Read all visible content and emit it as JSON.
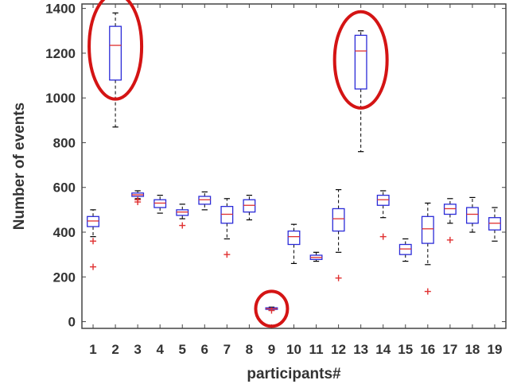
{
  "chart_data": {
    "type": "box",
    "xlabel": "participants#",
    "ylabel": "Number of events",
    "ylim": [
      -30,
      1420
    ],
    "yticks": [
      0,
      200,
      400,
      600,
      800,
      1000,
      1200,
      1400
    ],
    "categories": [
      "1",
      "2",
      "3",
      "4",
      "5",
      "6",
      "7",
      "8",
      "9",
      "10",
      "11",
      "12",
      "13",
      "14",
      "15",
      "16",
      "17",
      "18",
      "19"
    ],
    "boxes": [
      {
        "participant": "1",
        "whisker_low": 380,
        "q1": 425,
        "median": 450,
        "q3": 470,
        "whisker_high": 500,
        "outliers": [
          360,
          245
        ]
      },
      {
        "participant": "2",
        "whisker_low": 870,
        "q1": 1080,
        "median": 1235,
        "q3": 1320,
        "whisker_high": 1380,
        "outliers": []
      },
      {
        "participant": "3",
        "whisker_low": 550,
        "q1": 560,
        "median": 567,
        "q3": 575,
        "whisker_high": 585,
        "outliers": [
          535,
          545
        ]
      },
      {
        "participant": "4",
        "whisker_low": 485,
        "q1": 510,
        "median": 530,
        "q3": 545,
        "whisker_high": 565,
        "outliers": []
      },
      {
        "participant": "5",
        "whisker_low": 460,
        "q1": 475,
        "median": 490,
        "q3": 500,
        "whisker_high": 525,
        "outliers": [
          430
        ]
      },
      {
        "participant": "6",
        "whisker_low": 500,
        "q1": 525,
        "median": 545,
        "q3": 560,
        "whisker_high": 580,
        "outliers": []
      },
      {
        "participant": "7",
        "whisker_low": 370,
        "q1": 440,
        "median": 480,
        "q3": 515,
        "whisker_high": 550,
        "outliers": [
          300
        ]
      },
      {
        "participant": "8",
        "whisker_low": 455,
        "q1": 490,
        "median": 520,
        "q3": 545,
        "whisker_high": 565,
        "outliers": []
      },
      {
        "participant": "9",
        "whisker_low": 50,
        "q1": 55,
        "median": 58,
        "q3": 62,
        "whisker_high": 65,
        "outliers": [
          50
        ]
      },
      {
        "participant": "10",
        "whisker_low": 260,
        "q1": 345,
        "median": 380,
        "q3": 405,
        "whisker_high": 435,
        "outliers": []
      },
      {
        "participant": "11",
        "whisker_low": 270,
        "q1": 278,
        "median": 287,
        "q3": 297,
        "whisker_high": 310,
        "outliers": []
      },
      {
        "participant": "12",
        "whisker_low": 310,
        "q1": 405,
        "median": 460,
        "q3": 505,
        "whisker_high": 590,
        "outliers": [
          195
        ]
      },
      {
        "participant": "13",
        "whisker_low": 760,
        "q1": 1040,
        "median": 1210,
        "q3": 1280,
        "whisker_high": 1300,
        "outliers": []
      },
      {
        "participant": "14",
        "whisker_low": 465,
        "q1": 520,
        "median": 545,
        "q3": 565,
        "whisker_high": 585,
        "outliers": [
          380
        ]
      },
      {
        "participant": "15",
        "whisker_low": 270,
        "q1": 300,
        "median": 325,
        "q3": 345,
        "whisker_high": 370,
        "outliers": []
      },
      {
        "participant": "16",
        "whisker_low": 255,
        "q1": 350,
        "median": 415,
        "q3": 470,
        "whisker_high": 530,
        "outliers": [
          135
        ]
      },
      {
        "participant": "17",
        "whisker_low": 440,
        "q1": 480,
        "median": 505,
        "q3": 525,
        "whisker_high": 550,
        "outliers": [
          365
        ]
      },
      {
        "participant": "18",
        "whisker_low": 400,
        "q1": 440,
        "median": 480,
        "q3": 510,
        "whisker_high": 555,
        "outliers": []
      },
      {
        "participant": "19",
        "whisker_low": 360,
        "q1": 410,
        "median": 440,
        "q3": 465,
        "whisker_high": 510,
        "outliers": []
      }
    ],
    "highlighted_participants": [
      "2",
      "9",
      "13"
    ],
    "grid": false,
    "colors": {
      "box": "#2b2bd8",
      "median": "#e03030",
      "outlier": "#e03030",
      "whisker": "#000000",
      "highlight": "#d41414",
      "axis": "#444444",
      "text": "#333333"
    }
  }
}
